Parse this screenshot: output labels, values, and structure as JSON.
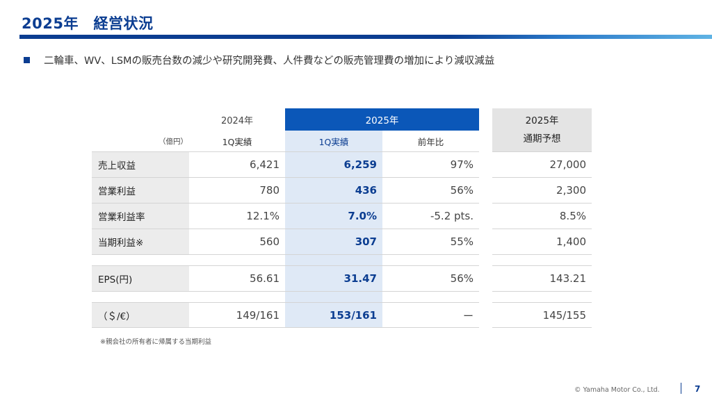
{
  "header": {
    "title": "2025年　経営状況"
  },
  "summary": "二輪車、WV、LSMの販売台数の減少や研究開発費、人件費などの販売管理費の増加により減収減益",
  "table": {
    "unit": "（億円）",
    "col_2024": "2024年",
    "col_2025": "2025年",
    "col_fy": "2025年",
    "sub_2024": "1Q実績",
    "sub_2025": "1Q実績",
    "sub_yoy": "前年比",
    "sub_fy": "通期予想",
    "rows": [
      {
        "label": "売上収益",
        "y2024": "6,421",
        "y2025": "6,259",
        "yoy": "97%",
        "fy": "27,000"
      },
      {
        "label": "営業利益",
        "y2024": "780",
        "y2025": "436",
        "yoy": "56%",
        "fy": "2,300"
      },
      {
        "label": "営業利益率",
        "y2024": "12.1%",
        "y2025": "7.0%",
        "yoy": "-5.2 pts.",
        "fy": "8.5%"
      },
      {
        "label": "当期利益※",
        "y2024": "560",
        "y2025": "307",
        "yoy": "55%",
        "fy": "1,400"
      },
      {
        "label": "EPS(円)",
        "y2024": "56.61",
        "y2025": "31.47",
        "yoy": "56%",
        "fy": "143.21"
      },
      {
        "label": "（＄/€）",
        "y2024": "149/161",
        "y2025": "153/161",
        "yoy": "ー",
        "fy": "145/155"
      }
    ]
  },
  "footnote": "※親会社の所有者に帰属する当期利益",
  "footer": {
    "copyright": "© Yamaha Motor Co., Ltd.",
    "page": "7"
  },
  "colors": {
    "brand": "#0b3d91",
    "header_fill": "#0b57b8",
    "current_col": "#dfe9f6",
    "label_fill": "#ececec",
    "fy_header": "#e4e4e4"
  }
}
